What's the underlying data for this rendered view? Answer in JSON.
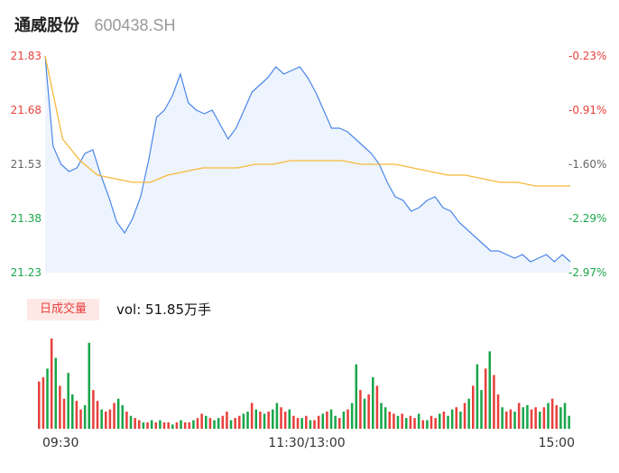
{
  "header": {
    "name": "通威股份",
    "code": "600438.SH"
  },
  "volume_panel": {
    "badge": "日成交量",
    "vol_label": "vol: 51.85万手"
  },
  "colors": {
    "up": "#e8413d",
    "down": "#1aa64b",
    "price": "#4a86e8",
    "avg": "#f6b93b",
    "fill": "#eef4fd"
  },
  "chart_data": [
    {
      "type": "line",
      "title": "",
      "y_left_ticks": [
        "21.83",
        "21.68",
        "21.53",
        "21.38",
        "21.23"
      ],
      "y_right_ticks": [
        "-0.23%",
        "-0.91%",
        "-1.60%",
        "-2.29%",
        "-2.97%"
      ],
      "ylim": [
        21.23,
        21.83
      ],
      "series": [
        {
          "role": "price",
          "values": [
            21.83,
            21.58,
            21.53,
            21.51,
            21.52,
            21.56,
            21.57,
            21.5,
            21.44,
            21.37,
            21.34,
            21.38,
            21.44,
            21.54,
            21.66,
            21.68,
            21.72,
            21.78,
            21.7,
            21.68,
            21.67,
            21.68,
            21.64,
            21.6,
            21.63,
            21.68,
            21.73,
            21.75,
            21.77,
            21.8,
            21.78,
            21.79,
            21.8,
            21.77,
            21.73,
            21.68,
            21.63,
            21.63,
            21.62,
            21.6,
            21.58,
            21.56,
            21.53,
            21.48,
            21.44,
            21.43,
            21.4,
            21.41,
            21.43,
            21.44,
            21.41,
            21.4,
            21.37,
            21.35,
            21.33,
            21.31,
            21.29,
            21.29,
            21.28,
            21.27,
            21.28,
            21.26,
            21.27,
            21.28,
            21.26,
            21.28,
            21.26
          ]
        },
        {
          "role": "average",
          "values": [
            21.83,
            21.6,
            21.54,
            21.5,
            21.49,
            21.48,
            21.48,
            21.5,
            21.51,
            21.52,
            21.52,
            21.52,
            21.53,
            21.53,
            21.54,
            21.54,
            21.54,
            21.54,
            21.53,
            21.53,
            21.53,
            21.52,
            21.51,
            21.5,
            21.5,
            21.49,
            21.48,
            21.48,
            21.47,
            21.47,
            21.47
          ]
        }
      ]
    },
    {
      "type": "bar",
      "title": "",
      "x_ticks": [
        "09:30",
        "11:30/13:00",
        "15:00"
      ],
      "values": [
        22,
        24,
        28,
        42,
        33,
        20,
        14,
        26,
        16,
        13,
        9,
        11,
        40,
        18,
        13,
        9,
        8,
        9,
        12,
        14,
        11,
        8,
        6,
        5,
        4,
        3,
        3,
        4,
        3,
        4,
        3,
        3,
        2,
        3,
        4,
        3,
        3,
        4,
        5,
        7,
        6,
        5,
        4,
        5,
        6,
        8,
        4,
        5,
        6,
        7,
        8,
        12,
        9,
        8,
        7,
        8,
        9,
        12,
        10,
        8,
        9,
        6,
        5,
        5,
        6,
        4,
        4,
        6,
        7,
        8,
        9,
        6,
        5,
        8,
        9,
        12,
        30,
        18,
        14,
        16,
        24,
        20,
        12,
        10,
        8,
        7,
        6,
        7,
        5,
        6,
        5,
        7,
        4,
        4,
        6,
        5,
        7,
        8,
        6,
        9,
        10,
        8,
        12,
        14,
        20,
        30,
        18,
        28,
        36,
        25,
        16,
        10,
        8,
        9,
        8,
        12,
        10,
        11,
        9,
        10,
        8,
        10,
        12,
        14,
        11,
        10,
        12,
        6
      ],
      "up": [
        1,
        1,
        0,
        1,
        0,
        1,
        1,
        0,
        0,
        1,
        1,
        0,
        0,
        1,
        1,
        0,
        1,
        1,
        1,
        0,
        0,
        1,
        0,
        1,
        1,
        0,
        1,
        0,
        1,
        0,
        1,
        1,
        0,
        1,
        0,
        1,
        1,
        0,
        1,
        1,
        0,
        1,
        0,
        0,
        1,
        1,
        0,
        1,
        1,
        0,
        0,
        1,
        0,
        1,
        0,
        1,
        0,
        0,
        1,
        1,
        0,
        1,
        1,
        0,
        1,
        0,
        1,
        1,
        0,
        1,
        0,
        0,
        1,
        0,
        1,
        0,
        0,
        1,
        0,
        1,
        0,
        1,
        0,
        0,
        1,
        1,
        0,
        1,
        0,
        1,
        1,
        0,
        1,
        0,
        1,
        1,
        0,
        1,
        0,
        0,
        1,
        0,
        1,
        0,
        1,
        0,
        0,
        1,
        0,
        1,
        1,
        0,
        1,
        1,
        0,
        1,
        0,
        0,
        1,
        1,
        0,
        1,
        0,
        1,
        1,
        0,
        0,
        0
      ]
    }
  ]
}
